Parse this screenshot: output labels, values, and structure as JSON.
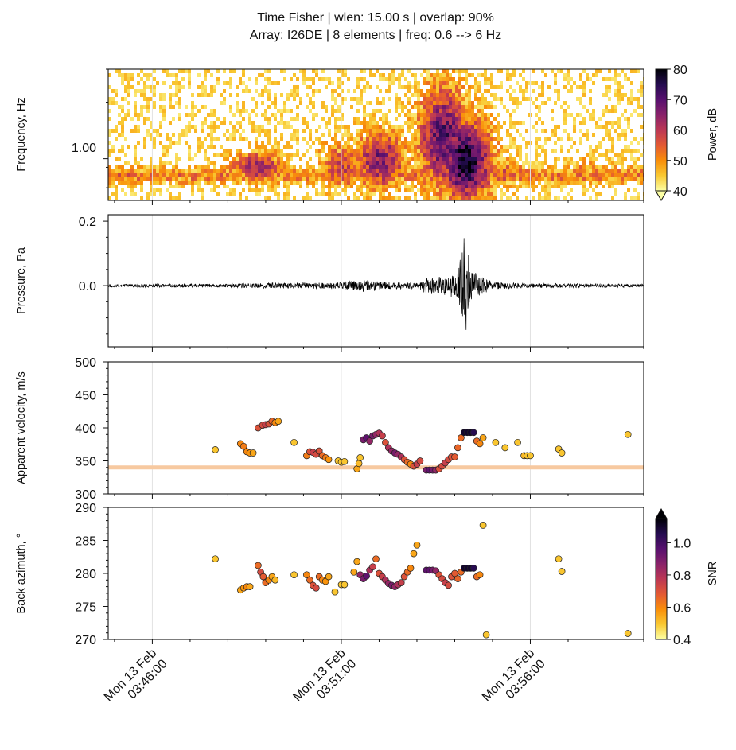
{
  "title": {
    "line1": "Time Fisher | wlen: 15.00 s | overlap: 90%",
    "line2": "Array: I26DE | 8 elements | freq: 0.6 --> 6 Hz"
  },
  "colors": {
    "background": "#ffffff",
    "axes": "#111111",
    "waveform": "#000000",
    "reference_line": "#f7c9a0",
    "colormap_inferno_r": [
      "#fcffa4",
      "#f9c932",
      "#f98e09",
      "#e35933",
      "#bc3754",
      "#89226a",
      "#57106e",
      "#240c4f",
      "#000004"
    ]
  },
  "chart_data": [
    {
      "id": "spectrogram",
      "type": "heatmap",
      "ylabel": "Frequency, Hz",
      "yscale": "log",
      "yticks": [
        "1.00"
      ],
      "ylim_hz": [
        0.6,
        3.0
      ],
      "x_time_range": [
        "03:44:50",
        "03:59:00"
      ],
      "colorbar": {
        "label": "Power, dB",
        "ticks": [
          "40",
          "50",
          "60",
          "70",
          "80"
        ],
        "vmin": 40,
        "vmax": 80,
        "extend": "min"
      },
      "energy_bursts": [
        {
          "time": "03:48:45",
          "freq_low": 0.75,
          "freq_high": 1.1,
          "power_db": 62
        },
        {
          "time": "03:51:00",
          "freq_low": 0.7,
          "freq_high": 1.2,
          "power_db": 58
        },
        {
          "time": "03:52:00",
          "freq_low": 0.7,
          "freq_high": 1.4,
          "power_db": 66
        },
        {
          "time": "03:53:40",
          "freq_low": 0.7,
          "freq_high": 2.4,
          "power_db": 70
        },
        {
          "time": "03:54:15",
          "freq_low": 0.6,
          "freq_high": 1.6,
          "power_db": 78
        },
        {
          "time": "03:55:10",
          "freq_low": 0.7,
          "freq_high": 1.0,
          "power_db": 55
        },
        {
          "time": "03:57:30",
          "freq_low": 0.75,
          "freq_high": 1.0,
          "power_db": 50
        }
      ]
    },
    {
      "id": "waveform",
      "type": "line",
      "ylabel": "Pressure, Pa",
      "ylim": [
        -0.19,
        0.22
      ],
      "yticks": [
        "0.0",
        "0.2"
      ],
      "amplitude_envelope": [
        {
          "time": "03:45:00",
          "amp": 0.005
        },
        {
          "time": "03:48:00",
          "amp": 0.006
        },
        {
          "time": "03:49:30",
          "amp": 0.01
        },
        {
          "time": "03:50:30",
          "amp": 0.009
        },
        {
          "time": "03:51:00",
          "amp": 0.012
        },
        {
          "time": "03:51:40",
          "amp": 0.02
        },
        {
          "time": "03:52:10",
          "amp": 0.012
        },
        {
          "time": "03:53:00",
          "amp": 0.009
        },
        {
          "time": "03:53:15",
          "amp": 0.025
        },
        {
          "time": "03:53:40",
          "amp": 0.03
        },
        {
          "time": "03:54:05",
          "amp": 0.04
        },
        {
          "time": "03:54:15",
          "amp": 0.2
        },
        {
          "time": "03:54:25",
          "amp": 0.05
        },
        {
          "time": "03:55:00",
          "amp": 0.012
        },
        {
          "time": "03:56:00",
          "amp": 0.007
        },
        {
          "time": "03:59:00",
          "amp": 0.005
        }
      ]
    },
    {
      "id": "velocity",
      "type": "scatter",
      "ylabel": "Apparent velocity, m/s",
      "ylim": [
        300,
        500
      ],
      "yticks": [
        "300",
        "350",
        "400",
        "450",
        "500"
      ],
      "reference_line_y": 340,
      "points": [
        {
          "t": "03:47:40",
          "v": 367,
          "snr": 0.5
        },
        {
          "t": "03:48:20",
          "v": 376,
          "snr": 0.6
        },
        {
          "t": "03:48:25",
          "v": 372,
          "snr": 0.62
        },
        {
          "t": "03:48:30",
          "v": 364,
          "snr": 0.6
        },
        {
          "t": "03:48:35",
          "v": 362,
          "snr": 0.58
        },
        {
          "t": "03:48:40",
          "v": 362,
          "snr": 0.55
        },
        {
          "t": "03:48:48",
          "v": 400,
          "snr": 0.7
        },
        {
          "t": "03:48:55",
          "v": 404,
          "snr": 0.72
        },
        {
          "t": "03:49:00",
          "v": 405,
          "snr": 0.75
        },
        {
          "t": "03:49:05",
          "v": 406,
          "snr": 0.7
        },
        {
          "t": "03:49:10",
          "v": 410,
          "snr": 0.66
        },
        {
          "t": "03:49:15",
          "v": 408,
          "snr": 0.6
        },
        {
          "t": "03:49:20",
          "v": 410,
          "snr": 0.55
        },
        {
          "t": "03:49:45",
          "v": 378,
          "snr": 0.5
        },
        {
          "t": "03:50:05",
          "v": 358,
          "snr": 0.62
        },
        {
          "t": "03:50:10",
          "v": 364,
          "snr": 0.7
        },
        {
          "t": "03:50:15",
          "v": 363,
          "snr": 0.75
        },
        {
          "t": "03:50:20",
          "v": 360,
          "snr": 0.72
        },
        {
          "t": "03:50:25",
          "v": 365,
          "snr": 0.7
        },
        {
          "t": "03:50:30",
          "v": 358,
          "snr": 0.65
        },
        {
          "t": "03:50:35",
          "v": 355,
          "snr": 0.62
        },
        {
          "t": "03:50:40",
          "v": 352,
          "snr": 0.58
        },
        {
          "t": "03:50:55",
          "v": 350,
          "snr": 0.5
        },
        {
          "t": "03:51:00",
          "v": 348,
          "snr": 0.5
        },
        {
          "t": "03:51:05",
          "v": 349,
          "snr": 0.5
        },
        {
          "t": "03:51:25",
          "v": 338,
          "snr": 0.55
        },
        {
          "t": "03:51:28",
          "v": 346,
          "snr": 0.52
        },
        {
          "t": "03:51:30",
          "v": 355,
          "snr": 0.5
        },
        {
          "t": "03:51:35",
          "v": 382,
          "snr": 0.9
        },
        {
          "t": "03:51:40",
          "v": 385,
          "snr": 0.95
        },
        {
          "t": "03:51:45",
          "v": 380,
          "snr": 0.85
        },
        {
          "t": "03:51:50",
          "v": 388,
          "snr": 0.9
        },
        {
          "t": "03:51:55",
          "v": 390,
          "snr": 0.85
        },
        {
          "t": "03:52:00",
          "v": 392,
          "snr": 0.8
        },
        {
          "t": "03:52:05",
          "v": 388,
          "snr": 0.75
        },
        {
          "t": "03:52:10",
          "v": 378,
          "snr": 0.7
        },
        {
          "t": "03:52:15",
          "v": 370,
          "snr": 0.8
        },
        {
          "t": "03:52:20",
          "v": 365,
          "snr": 0.85
        },
        {
          "t": "03:52:25",
          "v": 362,
          "snr": 0.9
        },
        {
          "t": "03:52:30",
          "v": 360,
          "snr": 0.85
        },
        {
          "t": "03:52:35",
          "v": 356,
          "snr": 0.8
        },
        {
          "t": "03:52:40",
          "v": 352,
          "snr": 0.7
        },
        {
          "t": "03:52:45",
          "v": 348,
          "snr": 0.65
        },
        {
          "t": "03:52:50",
          "v": 345,
          "snr": 0.6
        },
        {
          "t": "03:52:55",
          "v": 342,
          "snr": 0.7
        },
        {
          "t": "03:53:00",
          "v": 345,
          "snr": 0.75
        },
        {
          "t": "03:53:05",
          "v": 350,
          "snr": 0.72
        },
        {
          "t": "03:53:15",
          "v": 336,
          "snr": 0.9
        },
        {
          "t": "03:53:20",
          "v": 336,
          "snr": 0.95
        },
        {
          "t": "03:53:25",
          "v": 336,
          "snr": 0.9
        },
        {
          "t": "03:53:30",
          "v": 336,
          "snr": 0.85
        },
        {
          "t": "03:53:35",
          "v": 338,
          "snr": 0.7
        },
        {
          "t": "03:53:40",
          "v": 342,
          "snr": 0.72
        },
        {
          "t": "03:53:45",
          "v": 347,
          "snr": 0.75
        },
        {
          "t": "03:53:50",
          "v": 352,
          "snr": 0.72
        },
        {
          "t": "03:53:55",
          "v": 356,
          "snr": 0.7
        },
        {
          "t": "03:54:00",
          "v": 356,
          "snr": 0.68
        },
        {
          "t": "03:54:05",
          "v": 370,
          "snr": 0.66
        },
        {
          "t": "03:54:10",
          "v": 385,
          "snr": 0.65
        },
        {
          "t": "03:54:15",
          "v": 393,
          "snr": 1.1
        },
        {
          "t": "03:54:20",
          "v": 393,
          "snr": 1.1
        },
        {
          "t": "03:54:25",
          "v": 393,
          "snr": 1.1
        },
        {
          "t": "03:54:30",
          "v": 393,
          "snr": 1.05
        },
        {
          "t": "03:54:35",
          "v": 380,
          "snr": 0.65
        },
        {
          "t": "03:54:40",
          "v": 376,
          "snr": 0.6
        },
        {
          "t": "03:54:45",
          "v": 385,
          "snr": 0.55
        },
        {
          "t": "03:55:05",
          "v": 378,
          "snr": 0.5
        },
        {
          "t": "03:55:20",
          "v": 370,
          "snr": 0.5
        },
        {
          "t": "03:55:40",
          "v": 378,
          "snr": 0.5
        },
        {
          "t": "03:55:50",
          "v": 358,
          "snr": 0.52
        },
        {
          "t": "03:55:55",
          "v": 358,
          "snr": 0.5
        },
        {
          "t": "03:56:00",
          "v": 358,
          "snr": 0.5
        },
        {
          "t": "03:56:45",
          "v": 368,
          "snr": 0.5
        },
        {
          "t": "03:56:50",
          "v": 362,
          "snr": 0.5
        },
        {
          "t": "03:58:35",
          "v": 390,
          "snr": 0.5
        }
      ]
    },
    {
      "id": "back_azimuth",
      "type": "scatter",
      "ylabel": "Back azimuth, °",
      "ylim": [
        270,
        290
      ],
      "yticks": [
        "270",
        "275",
        "280",
        "285",
        "290"
      ],
      "xticks": [
        {
          "time": "03:46:00",
          "line1": "Mon 13 Feb",
          "line2": "03:46:00"
        },
        {
          "time": "03:51:00",
          "line1": "Mon 13 Feb",
          "line2": "03:51:00"
        },
        {
          "time": "03:56:00",
          "line1": "Mon 13 Feb",
          "line2": "03:56:00"
        }
      ],
      "colorbar": {
        "label": "SNR",
        "ticks": [
          "0.4",
          "0.6",
          "0.8",
          "1.0"
        ],
        "vmin": 0.4,
        "vmax": 1.15,
        "extend": "max"
      },
      "points": [
        {
          "t": "03:47:40",
          "baz": 282.2,
          "snr": 0.5
        },
        {
          "t": "03:48:20",
          "baz": 277.5,
          "snr": 0.55
        },
        {
          "t": "03:48:25",
          "baz": 277.8,
          "snr": 0.58
        },
        {
          "t": "03:48:30",
          "baz": 278.0,
          "snr": 0.6
        },
        {
          "t": "03:48:35",
          "baz": 278.0,
          "snr": 0.55
        },
        {
          "t": "03:48:48",
          "baz": 281.2,
          "snr": 0.65
        },
        {
          "t": "03:48:52",
          "baz": 280.2,
          "snr": 0.72
        },
        {
          "t": "03:48:56",
          "baz": 279.5,
          "snr": 0.68
        },
        {
          "t": "03:49:00",
          "baz": 278.6,
          "snr": 0.65
        },
        {
          "t": "03:49:05",
          "baz": 279.0,
          "snr": 0.6
        },
        {
          "t": "03:49:10",
          "baz": 279.5,
          "snr": 0.55
        },
        {
          "t": "03:49:15",
          "baz": 279.0,
          "snr": 0.52
        },
        {
          "t": "03:49:45",
          "baz": 279.8,
          "snr": 0.5
        },
        {
          "t": "03:50:05",
          "baz": 279.8,
          "snr": 0.6
        },
        {
          "t": "03:50:10",
          "baz": 279.0,
          "snr": 0.65
        },
        {
          "t": "03:50:15",
          "baz": 278.2,
          "snr": 0.7
        },
        {
          "t": "03:50:20",
          "baz": 277.8,
          "snr": 0.72
        },
        {
          "t": "03:50:25",
          "baz": 279.5,
          "snr": 0.65
        },
        {
          "t": "03:50:30",
          "baz": 279.0,
          "snr": 0.6
        },
        {
          "t": "03:50:35",
          "baz": 278.8,
          "snr": 0.58
        },
        {
          "t": "03:50:40",
          "baz": 279.5,
          "snr": 0.55
        },
        {
          "t": "03:50:50",
          "baz": 277.2,
          "snr": 0.5
        },
        {
          "t": "03:51:00",
          "baz": 278.3,
          "snr": 0.5
        },
        {
          "t": "03:51:05",
          "baz": 278.3,
          "snr": 0.5
        },
        {
          "t": "03:51:20",
          "baz": 280.2,
          "snr": 0.55
        },
        {
          "t": "03:51:25",
          "baz": 281.8,
          "snr": 0.55
        },
        {
          "t": "03:51:30",
          "baz": 279.8,
          "snr": 0.85
        },
        {
          "t": "03:51:35",
          "baz": 279.2,
          "snr": 0.9
        },
        {
          "t": "03:51:40",
          "baz": 279.6,
          "snr": 0.95
        },
        {
          "t": "03:51:45",
          "baz": 280.5,
          "snr": 0.8
        },
        {
          "t": "03:51:50",
          "baz": 281.0,
          "snr": 0.75
        },
        {
          "t": "03:51:55",
          "baz": 282.2,
          "snr": 0.65
        },
        {
          "t": "03:52:00",
          "baz": 280.0,
          "snr": 0.7
        },
        {
          "t": "03:52:05",
          "baz": 279.5,
          "snr": 0.75
        },
        {
          "t": "03:52:10",
          "baz": 279.0,
          "snr": 0.8
        },
        {
          "t": "03:52:15",
          "baz": 278.5,
          "snr": 0.85
        },
        {
          "t": "03:52:20",
          "baz": 278.2,
          "snr": 0.9
        },
        {
          "t": "03:52:25",
          "baz": 278.0,
          "snr": 0.85
        },
        {
          "t": "03:52:30",
          "baz": 278.3,
          "snr": 0.8
        },
        {
          "t": "03:52:35",
          "baz": 278.6,
          "snr": 0.75
        },
        {
          "t": "03:52:40",
          "baz": 279.5,
          "snr": 0.7
        },
        {
          "t": "03:52:45",
          "baz": 280.2,
          "snr": 0.65
        },
        {
          "t": "03:52:50",
          "baz": 280.8,
          "snr": 0.6
        },
        {
          "t": "03:52:55",
          "baz": 283.0,
          "snr": 0.55
        },
        {
          "t": "03:53:00",
          "baz": 284.3,
          "snr": 0.55
        },
        {
          "t": "03:53:15",
          "baz": 280.5,
          "snr": 0.95
        },
        {
          "t": "03:53:20",
          "baz": 280.5,
          "snr": 0.95
        },
        {
          "t": "03:53:25",
          "baz": 280.5,
          "snr": 0.9
        },
        {
          "t": "03:53:30",
          "baz": 280.4,
          "snr": 0.85
        },
        {
          "t": "03:53:35",
          "baz": 279.8,
          "snr": 0.7
        },
        {
          "t": "03:53:40",
          "baz": 279.2,
          "snr": 0.72
        },
        {
          "t": "03:53:45",
          "baz": 278.6,
          "snr": 0.75
        },
        {
          "t": "03:53:50",
          "baz": 278.2,
          "snr": 0.72
        },
        {
          "t": "03:53:55",
          "baz": 279.5,
          "snr": 0.7
        },
        {
          "t": "03:54:00",
          "baz": 280.0,
          "snr": 0.68
        },
        {
          "t": "03:54:05",
          "baz": 279.2,
          "snr": 0.66
        },
        {
          "t": "03:54:10",
          "baz": 280.2,
          "snr": 0.65
        },
        {
          "t": "03:54:15",
          "baz": 280.8,
          "snr": 1.1
        },
        {
          "t": "03:54:20",
          "baz": 280.8,
          "snr": 1.1
        },
        {
          "t": "03:54:25",
          "baz": 280.8,
          "snr": 1.1
        },
        {
          "t": "03:54:30",
          "baz": 280.8,
          "snr": 1.05
        },
        {
          "t": "03:54:35",
          "baz": 279.5,
          "snr": 0.65
        },
        {
          "t": "03:54:40",
          "baz": 279.8,
          "snr": 0.6
        },
        {
          "t": "03:54:45",
          "baz": 287.3,
          "snr": 0.5
        },
        {
          "t": "03:54:50",
          "baz": 270.7,
          "snr": 0.5
        },
        {
          "t": "03:56:45",
          "baz": 282.2,
          "snr": 0.5
        },
        {
          "t": "03:56:50",
          "baz": 280.3,
          "snr": 0.5
        },
        {
          "t": "03:58:35",
          "baz": 270.9,
          "snr": 0.5
        }
      ]
    }
  ]
}
